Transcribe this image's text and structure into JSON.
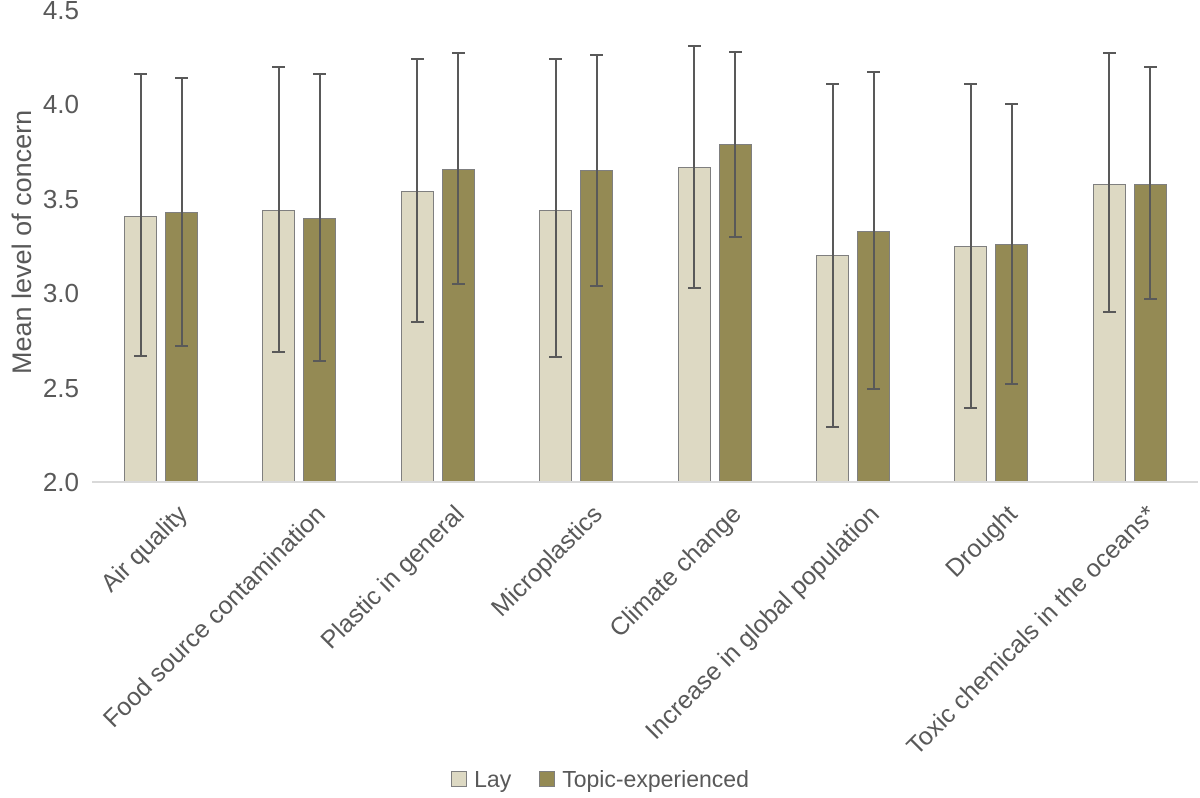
{
  "chart_data": {
    "type": "bar",
    "title": "",
    "ylabel": "Mean level of concern",
    "xlabel": "",
    "ylim": [
      2.0,
      4.5
    ],
    "yticks": [
      {
        "value": 4.5,
        "label": "4.5"
      },
      {
        "value": 4.0,
        "label": "4.0"
      },
      {
        "value": 3.5,
        "label": "3.5"
      },
      {
        "value": 3.0,
        "label": "3.0"
      },
      {
        "value": 2.5,
        "label": "2.5"
      },
      {
        "value": 2.0,
        "label": "2.0"
      }
    ],
    "gridlines": "none",
    "legend_position": "bottom",
    "categories": [
      "Air quality",
      "Food source contamination",
      "Plastic in general",
      "Microplastics",
      "Climate change",
      "Increase in global population",
      "Drought",
      "Toxic chemicals in the oceans*"
    ],
    "series": [
      {
        "name": "Lay",
        "color": "#DDD9C3",
        "values": [
          3.41,
          3.44,
          3.54,
          3.44,
          3.67,
          3.2,
          3.25,
          3.58
        ],
        "error_low": [
          2.67,
          2.69,
          2.85,
          2.66,
          3.03,
          2.29,
          2.39,
          2.9
        ],
        "error_high": [
          4.16,
          4.2,
          4.24,
          4.24,
          4.31,
          4.11,
          4.11,
          4.27
        ]
      },
      {
        "name": "Topic-experienced",
        "color": "#948A54",
        "values": [
          3.43,
          3.4,
          3.66,
          3.65,
          3.79,
          3.33,
          3.26,
          3.58
        ],
        "error_low": [
          2.72,
          2.64,
          3.05,
          3.04,
          3.3,
          2.49,
          2.52,
          2.97
        ],
        "error_high": [
          4.14,
          4.16,
          4.27,
          4.26,
          4.28,
          4.17,
          4.0,
          4.2
        ]
      }
    ],
    "colors": {
      "bar_border": "#7f7f7f",
      "error_bar": "#595959",
      "axis_line": "#d9d9d9",
      "text": "#595959"
    }
  }
}
